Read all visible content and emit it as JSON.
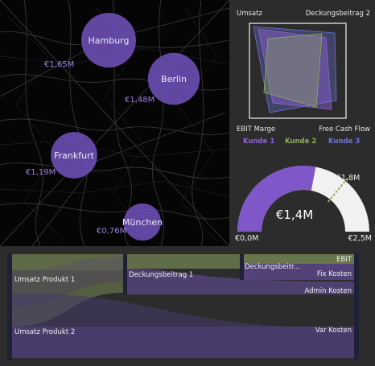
{
  "map": {
    "cities": [
      {
        "name": "Hamburg",
        "value": "€1,65M",
        "amount": 1.65
      },
      {
        "name": "Berlin",
        "value": "€1,48M",
        "amount": 1.48
      },
      {
        "name": "Frankfurt",
        "value": "€1,19M",
        "amount": 1.19
      },
      {
        "name": "München",
        "value": "€0,76M",
        "amount": 0.76
      }
    ]
  },
  "radar": {
    "axes": [
      "Umsatz",
      "Deckungsbeitrag 2",
      "EBIT Marge",
      "Free Cash Flow"
    ],
    "series": [
      {
        "name": "Kunde 1",
        "color": "#8f62d9"
      },
      {
        "name": "Kunde 2",
        "color": "#8fae5c"
      },
      {
        "name": "Kunde 3",
        "color": "#6b74d8"
      }
    ]
  },
  "gauge": {
    "value_label": "€1,4M",
    "value": 1.4,
    "min_label": "€0,0M",
    "max_label": "€2,5M",
    "min": 0,
    "max": 2.5,
    "target_label": "€1,8M",
    "target": 1.8,
    "fill_color": "#7f57c9",
    "track_color": "#f2f2f2"
  },
  "sankey": {
    "nodes": {
      "umsatz1": "Umsatz Produkt 1",
      "umsatz2": "Umsatz Produkt 2",
      "db1": "Deckungsbeitrag 1",
      "db2": "Deckungsbeitr...",
      "ebit": "EBIT",
      "fix": "Fix Kosten",
      "admin": "Admin Kosten",
      "var": "Var Kosten"
    }
  }
}
